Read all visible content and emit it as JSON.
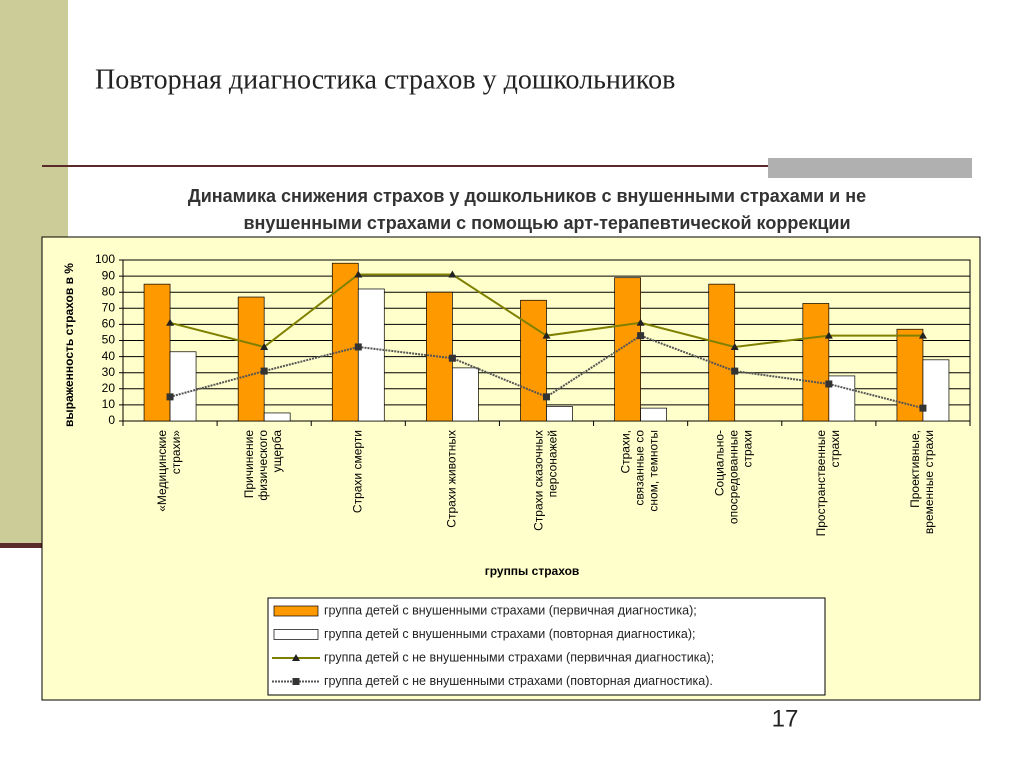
{
  "slide_title": "Повторная диагностика страхов у дошкольников",
  "page_number": "17",
  "chart_data": {
    "type": "bar_line",
    "title": [
      "Динамика снижения страхов у дошкольников с внушенными страхами и не",
      "внушенными страхами с помощью арт-терапевтической коррекции"
    ],
    "y_label": "выраженность страхов в %",
    "x_label": "группы страхов",
    "categories": [
      "«Медицинские\nстрахи»",
      "Причинение\nфизического\nущерба",
      "Страхи смерти",
      "Страхи животных",
      "Страхи сказочных\nперсонажей",
      "Страхи,\nсвязанные со\nсном, темноты",
      "Социально-\nопосредованные\nстрахи",
      "Пространственные\nстрахи",
      "Проективные,\nвременные страхи"
    ],
    "ylim": [
      0,
      100
    ],
    "yticks": [
      0,
      10,
      20,
      30,
      40,
      50,
      60,
      70,
      80,
      90,
      100
    ],
    "grid": true,
    "series": [
      {
        "name": "группа детей с внушенными страхами (первичная диагностика);",
        "kind": "bar",
        "color": "#ff9900",
        "values": [
          85,
          77,
          98,
          80,
          75,
          89,
          85,
          73,
          57
        ]
      },
      {
        "name": "группа детей с внушенными страхами (повторная диагностика);",
        "kind": "bar",
        "color": "#ffffff",
        "values": [
          43,
          5,
          82,
          33,
          9,
          8,
          0,
          28,
          38
        ]
      },
      {
        "name": "группа детей с не внушенными страхами (первичная диагностика);",
        "kind": "line",
        "marker": "triangle",
        "color": "#808000",
        "values": [
          61,
          46,
          91,
          91,
          53,
          61,
          46,
          53,
          53
        ]
      },
      {
        "name": "группа детей с не внушенными страхами (повторная диагностика).",
        "kind": "line",
        "marker": "square",
        "color": "#555555",
        "values": [
          15,
          31,
          46,
          39,
          15,
          53,
          31,
          23,
          8
        ]
      }
    ]
  }
}
